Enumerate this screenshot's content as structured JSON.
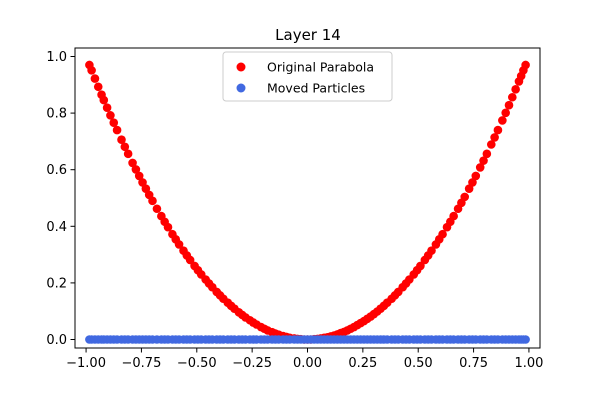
{
  "chart_data": {
    "type": "scatter",
    "title": "Layer 14",
    "xlabel": "",
    "ylabel": "",
    "xlim": [
      -1.05,
      1.05
    ],
    "ylim": [
      -0.03,
      1.03
    ],
    "x_ticks": [
      -1.0,
      -0.75,
      -0.5,
      -0.25,
      0.0,
      0.25,
      0.5,
      0.75,
      1.0
    ],
    "x_tick_labels": [
      "−1.00",
      "−0.75",
      "−0.50",
      "−0.25",
      "0.00",
      "0.25",
      "0.50",
      "0.75",
      "1.00"
    ],
    "y_ticks": [
      0.0,
      0.2,
      0.4,
      0.6,
      0.8,
      1.0
    ],
    "y_tick_labels": [
      "0.0",
      "0.2",
      "0.4",
      "0.6",
      "0.8",
      "1.0"
    ],
    "grid": false,
    "legend_position": "top-center",
    "series": [
      {
        "name": "Original Parabola",
        "color": "#ff0000",
        "x": [
          -0.985,
          -0.975,
          -0.96,
          -0.945,
          -0.93,
          -0.92,
          -0.905,
          -0.89,
          -0.875,
          -0.86,
          -0.84,
          -0.825,
          -0.81,
          -0.79,
          -0.775,
          -0.76,
          -0.745,
          -0.73,
          -0.715,
          -0.7,
          -0.68,
          -0.66,
          -0.645,
          -0.63,
          -0.61,
          -0.595,
          -0.58,
          -0.56,
          -0.545,
          -0.53,
          -0.51,
          -0.495,
          -0.48,
          -0.46,
          -0.445,
          -0.43,
          -0.41,
          -0.395,
          -0.38,
          -0.36,
          -0.345,
          -0.33,
          -0.31,
          -0.295,
          -0.28,
          -0.26,
          -0.245,
          -0.23,
          -0.21,
          -0.195,
          -0.18,
          -0.16,
          -0.145,
          -0.13,
          -0.11,
          -0.095,
          -0.08,
          -0.06,
          -0.045,
          -0.03,
          -0.015,
          0.0,
          0.015,
          0.03,
          0.045,
          0.06,
          0.075,
          0.09,
          0.105,
          0.12,
          0.135,
          0.15,
          0.165,
          0.18,
          0.195,
          0.21,
          0.225,
          0.24,
          0.255,
          0.27,
          0.285,
          0.3,
          0.315,
          0.33,
          0.345,
          0.36,
          0.38,
          0.395,
          0.41,
          0.43,
          0.445,
          0.46,
          0.48,
          0.495,
          0.51,
          0.53,
          0.545,
          0.56,
          0.58,
          0.595,
          0.61,
          0.63,
          0.645,
          0.66,
          0.68,
          0.695,
          0.71,
          0.73,
          0.745,
          0.76,
          0.78,
          0.795,
          0.81,
          0.83,
          0.845,
          0.86,
          0.88,
          0.895,
          0.91,
          0.925,
          0.94,
          0.955,
          0.965,
          0.975,
          0.985
        ],
        "y": [
          0.97,
          0.951,
          0.922,
          0.893,
          0.865,
          0.846,
          0.819,
          0.792,
          0.766,
          0.74,
          0.706,
          0.681,
          0.656,
          0.624,
          0.601,
          0.578,
          0.555,
          0.533,
          0.511,
          0.49,
          0.462,
          0.436,
          0.416,
          0.397,
          0.372,
          0.354,
          0.336,
          0.314,
          0.297,
          0.281,
          0.26,
          0.245,
          0.23,
          0.212,
          0.198,
          0.185,
          0.168,
          0.156,
          0.144,
          0.13,
          0.119,
          0.109,
          0.096,
          0.087,
          0.078,
          0.068,
          0.06,
          0.053,
          0.044,
          0.038,
          0.032,
          0.026,
          0.021,
          0.017,
          0.012,
          0.009,
          0.006,
          0.004,
          0.002,
          0.001,
          0.0,
          0.0,
          0.0,
          0.001,
          0.002,
          0.004,
          0.006,
          0.008,
          0.011,
          0.014,
          0.018,
          0.023,
          0.027,
          0.032,
          0.038,
          0.044,
          0.051,
          0.058,
          0.065,
          0.073,
          0.081,
          0.09,
          0.099,
          0.109,
          0.119,
          0.13,
          0.144,
          0.156,
          0.168,
          0.185,
          0.198,
          0.212,
          0.23,
          0.245,
          0.26,
          0.281,
          0.297,
          0.314,
          0.336,
          0.354,
          0.372,
          0.397,
          0.416,
          0.436,
          0.462,
          0.483,
          0.504,
          0.533,
          0.555,
          0.578,
          0.608,
          0.632,
          0.656,
          0.689,
          0.714,
          0.74,
          0.774,
          0.801,
          0.828,
          0.856,
          0.884,
          0.912,
          0.931,
          0.951,
          0.97
        ]
      },
      {
        "name": "Moved Particles",
        "color": "#4169e1",
        "x": [
          -0.985,
          -0.975,
          -0.96,
          -0.945,
          -0.93,
          -0.92,
          -0.905,
          -0.89,
          -0.875,
          -0.86,
          -0.84,
          -0.825,
          -0.81,
          -0.79,
          -0.775,
          -0.76,
          -0.745,
          -0.73,
          -0.715,
          -0.7,
          -0.68,
          -0.66,
          -0.645,
          -0.63,
          -0.61,
          -0.595,
          -0.58,
          -0.56,
          -0.545,
          -0.53,
          -0.51,
          -0.495,
          -0.48,
          -0.46,
          -0.445,
          -0.43,
          -0.41,
          -0.395,
          -0.38,
          -0.36,
          -0.345,
          -0.33,
          -0.31,
          -0.295,
          -0.28,
          -0.26,
          -0.245,
          -0.23,
          -0.21,
          -0.195,
          -0.18,
          -0.16,
          -0.145,
          -0.13,
          -0.11,
          -0.095,
          -0.08,
          -0.06,
          -0.045,
          -0.03,
          -0.015,
          0.0,
          0.015,
          0.03,
          0.045,
          0.06,
          0.075,
          0.09,
          0.105,
          0.12,
          0.135,
          0.15,
          0.165,
          0.18,
          0.195,
          0.21,
          0.225,
          0.24,
          0.255,
          0.27,
          0.285,
          0.3,
          0.315,
          0.33,
          0.345,
          0.36,
          0.38,
          0.395,
          0.41,
          0.43,
          0.445,
          0.46,
          0.48,
          0.495,
          0.51,
          0.53,
          0.545,
          0.56,
          0.58,
          0.595,
          0.61,
          0.63,
          0.645,
          0.66,
          0.68,
          0.695,
          0.71,
          0.73,
          0.745,
          0.76,
          0.78,
          0.795,
          0.81,
          0.83,
          0.845,
          0.86,
          0.88,
          0.895,
          0.91,
          0.925,
          0.94,
          0.955,
          0.965,
          0.975,
          0.985
        ],
        "y": [
          0.0,
          0.0,
          0.0,
          0.0,
          0.0,
          0.0,
          0.0,
          0.0,
          0.0,
          0.0,
          0.0,
          0.0,
          0.0,
          0.0,
          0.0,
          0.0,
          0.0,
          0.0,
          0.0,
          0.0,
          0.0,
          0.0,
          0.0,
          0.0,
          0.0,
          0.0,
          0.0,
          0.0,
          0.0,
          0.0,
          0.0,
          0.0,
          0.0,
          0.0,
          0.0,
          0.0,
          0.0,
          0.0,
          0.0,
          0.0,
          0.0,
          0.0,
          0.0,
          0.0,
          0.0,
          0.0,
          0.0,
          0.0,
          0.0,
          0.0,
          0.0,
          0.0,
          0.0,
          0.0,
          0.0,
          0.0,
          0.0,
          0.0,
          0.0,
          0.0,
          0.0,
          0.0,
          0.0,
          0.0,
          0.0,
          0.0,
          0.0,
          0.0,
          0.0,
          0.0,
          0.0,
          0.0,
          0.0,
          0.0,
          0.0,
          0.0,
          0.0,
          0.0,
          0.0,
          0.0,
          0.0,
          0.0,
          0.0,
          0.0,
          0.0,
          0.0,
          0.0,
          0.0,
          0.0,
          0.0,
          0.0,
          0.0,
          0.0,
          0.0,
          0.0,
          0.0,
          0.0,
          0.0,
          0.0,
          0.0,
          0.0,
          0.0,
          0.0,
          0.0,
          0.0,
          0.0,
          0.0,
          0.0,
          0.0,
          0.0,
          0.0,
          0.0,
          0.0,
          0.0,
          0.0,
          0.0,
          0.0,
          0.0,
          0.0,
          0.0,
          0.0,
          0.0,
          0.0,
          0.0,
          0.0
        ]
      }
    ]
  }
}
